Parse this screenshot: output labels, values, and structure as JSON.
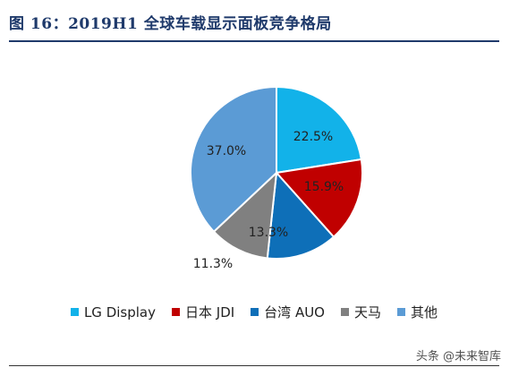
{
  "title": "图 16：2019H1 全球车载显示面板竞争格局",
  "watermark": "头条 @未来智库",
  "chart_data": {
    "type": "pie",
    "title": "图 16：2019H1 全球车载显示面板竞争格局",
    "legend_position": "bottom",
    "slices": [
      {
        "label": "LG Display",
        "value": 22.5,
        "display": "22.5%",
        "color": "#12b2e9"
      },
      {
        "label": "日本 JDI",
        "value": 15.9,
        "display": "15.9%",
        "color": "#c00000"
      },
      {
        "label": "台湾 AUO",
        "value": 13.3,
        "display": "13.3%",
        "color": "#0e6fb8"
      },
      {
        "label": "天马",
        "value": 11.3,
        "display": "11.3%",
        "color": "#808080"
      },
      {
        "label": "其他",
        "value": 37.0,
        "display": "37.0%",
        "color": "#5b9bd5"
      }
    ]
  }
}
